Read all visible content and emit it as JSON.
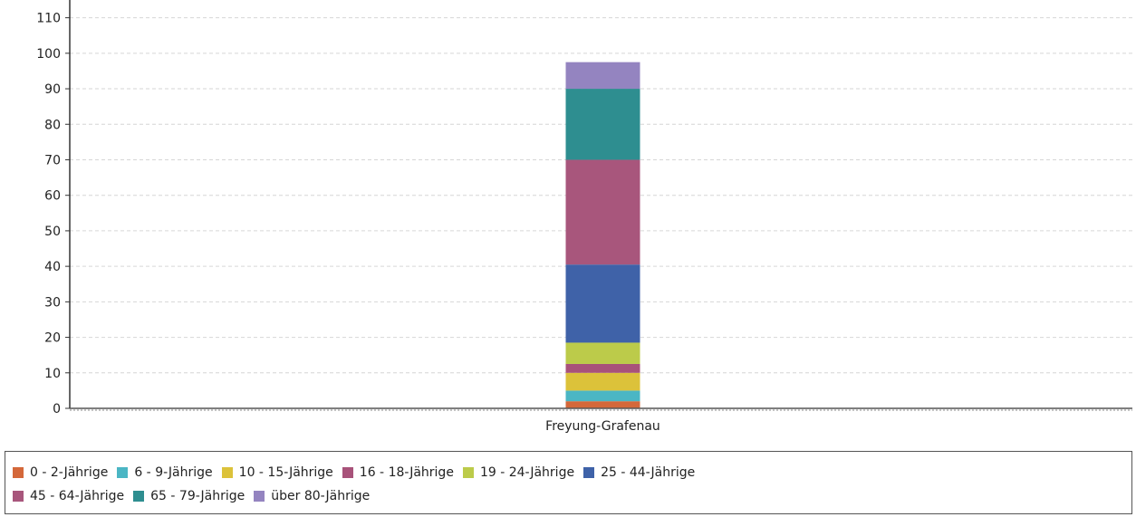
{
  "chart_data": {
    "type": "bar",
    "stacked": true,
    "categories": [
      "Freyung-Grafenau"
    ],
    "ylim": [
      0,
      115
    ],
    "yticks": [
      0,
      10,
      20,
      30,
      40,
      50,
      60,
      70,
      80,
      90,
      100,
      110
    ],
    "grid": true,
    "legend_position": "bottom",
    "series": [
      {
        "name": "0 - 2-Jährige",
        "values": [
          2
        ],
        "color": "#d4683a"
      },
      {
        "name": "6 - 9-Jährige",
        "values": [
          3
        ],
        "color": "#4bb6c4"
      },
      {
        "name": "10 - 15-Jährige",
        "values": [
          5
        ],
        "color": "#dcc23a"
      },
      {
        "name": "16 - 18-Jährige",
        "values": [
          2.5
        ],
        "color": "#a8527a"
      },
      {
        "name": "19 - 24-Jährige",
        "values": [
          6
        ],
        "color": "#bccb4a"
      },
      {
        "name": "25 - 44-Jährige",
        "values": [
          22
        ],
        "color": "#3f62a8"
      },
      {
        "name": "45 - 64-Jährige",
        "values": [
          29.5
        ],
        "color": "#a8567c"
      },
      {
        "name": "65 - 79-Jährige",
        "values": [
          20
        ],
        "color": "#2e8e90"
      },
      {
        "name": "über 80-Jährige",
        "values": [
          7.5
        ],
        "color": "#9484c0"
      }
    ]
  }
}
